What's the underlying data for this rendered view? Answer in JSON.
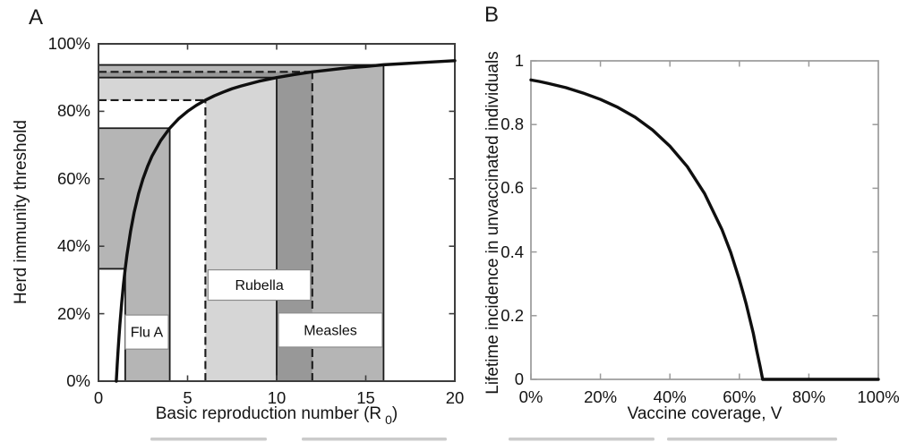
{
  "figure": {
    "background": "#ffffff",
    "description_colors": {
      "curve_color": "#0f0f0f",
      "panel_a_axis_color": "#3d3d3d",
      "panel_b_axis_color": "#9a9a9a",
      "band_light_gray": "#d6d6d6",
      "band_medium_gray": "#b5b5b5",
      "band_overlap_dark_gray": "#989898",
      "label_box_fill": "#ffffff",
      "label_box_border": "#8c8c8c"
    }
  },
  "chart_data": [
    {
      "type": "line",
      "panel_label": "A",
      "xlabel": "Basic reproduction number (R0)",
      "xlabel_parts": {
        "pre": "Basic reproduction number (R",
        "sub": "0",
        "post": ")"
      },
      "ylabel": "Herd immunity threshold",
      "xlim": [
        0,
        20
      ],
      "ylim_pct": [
        0,
        100
      ],
      "xtick_labels": [
        "0",
        "5",
        "10",
        "15",
        "20"
      ],
      "xtick_values": [
        0,
        5,
        10,
        15,
        20
      ],
      "ytick_labels": [
        "0%",
        "20%",
        "40%",
        "60%",
        "80%",
        "100%"
      ],
      "ytick_values": [
        0,
        20,
        40,
        60,
        80,
        100
      ],
      "grid": false,
      "legend": "none",
      "curve_formula": "herd immunity threshold = 1 - 1/R0",
      "curve": {
        "x": [
          1,
          1.05,
          1.1,
          1.15,
          1.2,
          1.3,
          1.4,
          1.5,
          1.6,
          1.8,
          2,
          2.25,
          2.5,
          2.75,
          3,
          3.5,
          4,
          4.5,
          5,
          5.5,
          6,
          6.5,
          7,
          7.5,
          8,
          9,
          10,
          11,
          12,
          13,
          14,
          15,
          16,
          17,
          18,
          19,
          20
        ],
        "y_pct": [
          0,
          4.8,
          9.1,
          13.0,
          16.7,
          23.1,
          28.6,
          33.3,
          37.5,
          44.4,
          50.0,
          55.6,
          60.0,
          63.6,
          66.7,
          71.4,
          75.0,
          77.8,
          80.0,
          81.8,
          83.3,
          84.6,
          85.7,
          86.7,
          87.5,
          88.9,
          90.0,
          90.9,
          91.7,
          92.3,
          92.9,
          93.3,
          93.8,
          94.1,
          94.4,
          94.7,
          95.0
        ]
      },
      "diseases": [
        {
          "name": "Flu A",
          "r0_range": [
            1.5,
            4
          ],
          "hit_pct_range": [
            33.3,
            75
          ],
          "edge_style": "solid",
          "fill": "rgba(0,0,0,0.29)",
          "label_box_x": [
            1.5,
            3.92
          ],
          "label_box_y_pct": [
            9.5,
            19.6
          ]
        },
        {
          "name": "Rubella",
          "r0_range": [
            6,
            12
          ],
          "hit_pct_range": [
            83.3,
            91.7
          ],
          "edge_style": "dashed",
          "fill": "rgba(0,0,0,0.16)",
          "label_box_x": [
            6.15,
            11.9
          ],
          "label_box_y_pct": [
            24,
            33
          ]
        },
        {
          "name": "Measles",
          "r0_range": [
            10,
            16
          ],
          "hit_pct_range": [
            90,
            93.75
          ],
          "edge_style": "solid",
          "fill": "rgba(0,0,0,0.29)",
          "label_box_x": [
            10.1,
            15.93
          ],
          "label_box_y_pct": [
            10.1,
            20.2
          ]
        }
      ]
    },
    {
      "type": "line",
      "panel_label": "B",
      "xlabel": "Vaccine coverage, V",
      "ylabel": "Lifetime incidence in unvaccinated individuals",
      "xlim_pct": [
        0,
        100
      ],
      "ylim": [
        0,
        1
      ],
      "xtick_labels": [
        "0%",
        "20%",
        "40%",
        "60%",
        "80%",
        "100%"
      ],
      "xtick_values": [
        0,
        20,
        40,
        60,
        80,
        100
      ],
      "ytick_labels": [
        "0",
        "0.2",
        "0.4",
        "0.6",
        "0.8",
        "1"
      ],
      "ytick_values": [
        0,
        0.2,
        0.4,
        0.6,
        0.8,
        1
      ],
      "grid": false,
      "legend": "none",
      "curve_note": "incidence falls to 0 at vaccine coverage of about 67%",
      "series": [
        {
          "name": "Lifetime incidence in unvaccinated individuals",
          "x_pct": [
            0,
            2.5,
            5,
            10,
            15,
            20,
            25,
            30,
            35,
            40,
            45,
            50,
            55,
            57.5,
            60,
            61,
            62,
            63,
            64,
            65,
            66,
            66.7,
            70,
            80,
            90,
            100
          ],
          "y": [
            0.94,
            0.935,
            0.929,
            0.916,
            0.899,
            0.879,
            0.854,
            0.823,
            0.783,
            0.732,
            0.668,
            0.583,
            0.47,
            0.399,
            0.313,
            0.275,
            0.235,
            0.19,
            0.145,
            0.09,
            0.039,
            0,
            0,
            0,
            0,
            0
          ]
        }
      ]
    }
  ]
}
